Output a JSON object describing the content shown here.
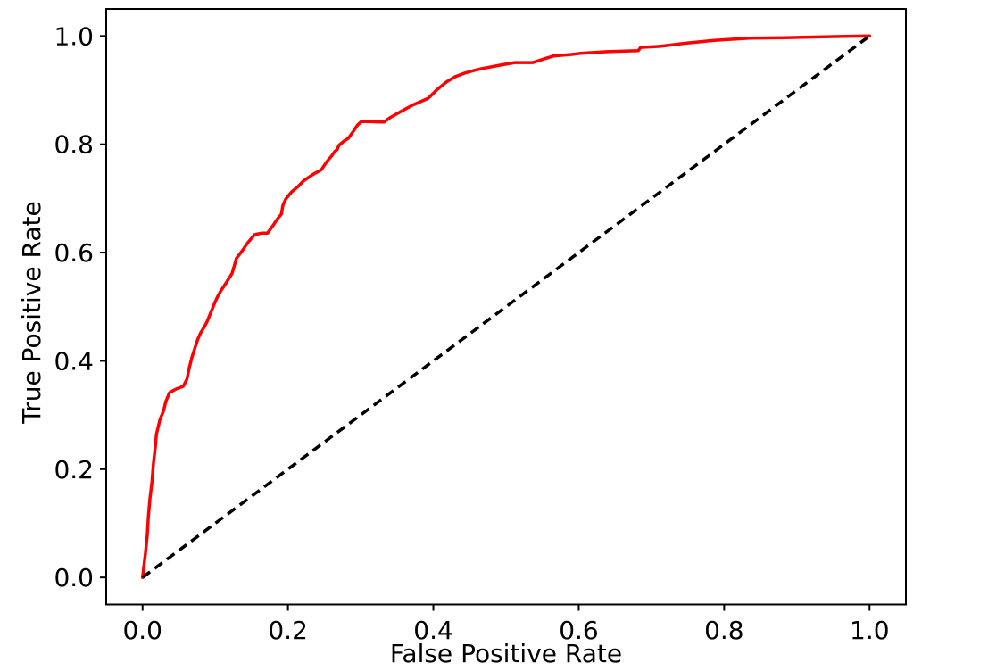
{
  "figure": {
    "background": "#ffffff",
    "frame_color": "#000000",
    "text_color": "#000000"
  },
  "chart_data": {
    "type": "line",
    "title": "",
    "xlabel": "False Positive Rate",
    "ylabel": "True Positive Rate",
    "xlim": [
      -0.05,
      1.05
    ],
    "ylim": [
      -0.05,
      1.05
    ],
    "xtick_values": [
      0.0,
      0.2,
      0.4,
      0.6,
      0.8,
      1.0
    ],
    "xtick_labels": [
      "0.0",
      "0.2",
      "0.4",
      "0.6",
      "0.8",
      "1.0"
    ],
    "ytick_values": [
      0.0,
      0.2,
      0.4,
      0.6,
      0.8,
      1.0
    ],
    "ytick_labels": [
      "0.0",
      "0.2",
      "0.4",
      "0.6",
      "0.8",
      "1.0"
    ],
    "grid": false,
    "legend": "none",
    "series": [
      {
        "name": "roc-curve",
        "color": "#ff0000",
        "linestyle": "solid",
        "linewidth": 3.5,
        "points": [
          [
            0.0,
            0.0
          ],
          [
            0.004,
            0.045
          ],
          [
            0.0065,
            0.078
          ],
          [
            0.008,
            0.111
          ],
          [
            0.01,
            0.144
          ],
          [
            0.013,
            0.177
          ],
          [
            0.015,
            0.21
          ],
          [
            0.0176,
            0.242
          ],
          [
            0.019,
            0.264
          ],
          [
            0.024,
            0.292
          ],
          [
            0.029,
            0.308
          ],
          [
            0.032,
            0.325
          ],
          [
            0.037,
            0.341
          ],
          [
            0.046,
            0.348
          ],
          [
            0.056,
            0.353
          ],
          [
            0.061,
            0.366
          ],
          [
            0.064,
            0.386
          ],
          [
            0.068,
            0.407
          ],
          [
            0.072,
            0.424
          ],
          [
            0.076,
            0.44
          ],
          [
            0.08,
            0.452
          ],
          [
            0.085,
            0.463
          ],
          [
            0.089,
            0.473
          ],
          [
            0.094,
            0.49
          ],
          [
            0.099,
            0.506
          ],
          [
            0.103,
            0.518
          ],
          [
            0.107,
            0.528
          ],
          [
            0.115,
            0.544
          ],
          [
            0.123,
            0.561
          ],
          [
            0.126,
            0.575
          ],
          [
            0.129,
            0.589
          ],
          [
            0.137,
            0.603
          ],
          [
            0.144,
            0.617
          ],
          [
            0.154,
            0.633
          ],
          [
            0.164,
            0.636
          ],
          [
            0.172,
            0.636
          ],
          [
            0.18,
            0.651
          ],
          [
            0.186,
            0.663
          ],
          [
            0.191,
            0.671
          ],
          [
            0.193,
            0.687
          ],
          [
            0.197,
            0.699
          ],
          [
            0.205,
            0.712
          ],
          [
            0.214,
            0.722
          ],
          [
            0.221,
            0.732
          ],
          [
            0.234,
            0.744
          ],
          [
            0.246,
            0.753
          ],
          [
            0.253,
            0.767
          ],
          [
            0.261,
            0.78
          ],
          [
            0.264,
            0.786
          ],
          [
            0.268,
            0.791
          ],
          [
            0.27,
            0.798
          ],
          [
            0.277,
            0.806
          ],
          [
            0.283,
            0.811
          ],
          [
            0.29,
            0.824
          ],
          [
            0.296,
            0.836
          ],
          [
            0.301,
            0.842
          ],
          [
            0.313,
            0.842
          ],
          [
            0.326,
            0.841
          ],
          [
            0.332,
            0.841
          ],
          [
            0.34,
            0.849
          ],
          [
            0.356,
            0.861
          ],
          [
            0.371,
            0.872
          ],
          [
            0.393,
            0.885
          ],
          [
            0.406,
            0.902
          ],
          [
            0.418,
            0.915
          ],
          [
            0.43,
            0.925
          ],
          [
            0.442,
            0.931
          ],
          [
            0.455,
            0.936
          ],
          [
            0.467,
            0.94
          ],
          [
            0.491,
            0.946
          ],
          [
            0.512,
            0.951
          ],
          [
            0.537,
            0.951
          ],
          [
            0.553,
            0.958
          ],
          [
            0.565,
            0.963
          ],
          [
            0.59,
            0.966
          ],
          [
            0.602,
            0.968
          ],
          [
            0.639,
            0.971
          ],
          [
            0.682,
            0.973
          ],
          [
            0.685,
            0.979
          ],
          [
            0.712,
            0.981
          ],
          [
            0.749,
            0.987
          ],
          [
            0.786,
            0.992
          ],
          [
            0.835,
            0.996
          ],
          [
            0.884,
            0.997
          ],
          [
            0.958,
            0.999
          ],
          [
            1.0,
            1.0
          ]
        ]
      },
      {
        "name": "chance-diagonal",
        "color": "#000000",
        "linestyle": "dashed",
        "linewidth": 3.5,
        "points": [
          [
            0.0,
            0.0
          ],
          [
            1.0,
            1.0
          ]
        ]
      }
    ]
  }
}
